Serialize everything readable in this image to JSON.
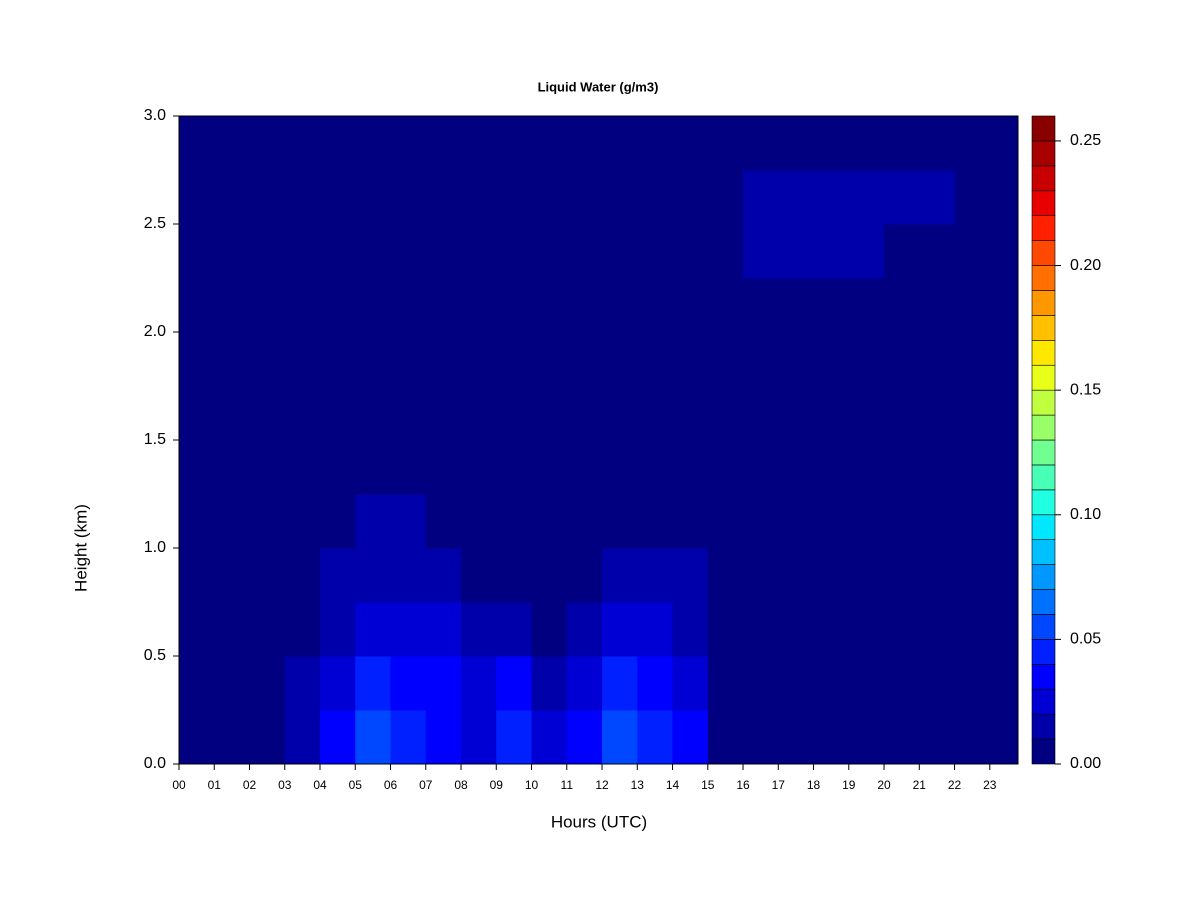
{
  "chart_data": {
    "type": "heatmap",
    "title": "Liquid Water (g/m3)",
    "x_label": "Hours (UTC)",
    "y_label": "Height (km)",
    "xbins": [
      0,
      1,
      2,
      3,
      4,
      5,
      6,
      7,
      8,
      9,
      10,
      11,
      12,
      13,
      14,
      15,
      16,
      17,
      18,
      19,
      20,
      21,
      22,
      23,
      23.8
    ],
    "ybins": [
      0,
      0.25,
      0.5,
      0.75,
      1,
      1.25,
      1.5,
      1.75,
      2,
      2.25,
      2.5,
      2.75,
      3
    ],
    "z": [
      [
        0.002,
        0.005,
        0.002,
        0.015,
        0.03,
        0.05,
        0.04,
        0.035,
        0.025,
        0.04,
        0.02,
        0.035,
        0.05,
        0.045,
        0.03,
        0.005,
        0.002,
        0.002,
        0.002,
        0.002,
        0.002,
        0.002,
        0.002,
        0.002
      ],
      [
        0.002,
        0.002,
        0.002,
        0.012,
        0.025,
        0.04,
        0.03,
        0.03,
        0.02,
        0.03,
        0.01,
        0.025,
        0.04,
        0.035,
        0.025,
        0.002,
        0.002,
        0.002,
        0.002,
        0.002,
        0.002,
        0.002,
        0.002,
        0.002
      ],
      [
        0.002,
        0.002,
        0.002,
        0.008,
        0.015,
        0.025,
        0.02,
        0.02,
        0.01,
        0.015,
        0.005,
        0.015,
        0.02,
        0.02,
        0.015,
        0.002,
        0.002,
        0.002,
        0.002,
        0.002,
        0.002,
        0.002,
        0.002,
        0.002
      ],
      [
        0.002,
        0.002,
        0.002,
        0.005,
        0.01,
        0.015,
        0.015,
        0.01,
        0.005,
        0.008,
        0.002,
        0.008,
        0.01,
        0.012,
        0.01,
        0.002,
        0.002,
        0.002,
        0.002,
        0.002,
        0.002,
        0.002,
        0.002,
        0.002
      ],
      [
        0.002,
        0.002,
        0.002,
        0.002,
        0.005,
        0.01,
        0.01,
        0.005,
        0.002,
        0.002,
        0.002,
        0.003,
        0.005,
        0.006,
        0.005,
        0.002,
        0.002,
        0.002,
        0.002,
        0.002,
        0.002,
        0.002,
        0.002,
        0.002
      ],
      [
        0.002,
        0.002,
        0.002,
        0.002,
        0.002,
        0.005,
        0.008,
        0.002,
        0.002,
        0.002,
        0.002,
        0.002,
        0.002,
        0.002,
        0.002,
        0.002,
        0.002,
        0.002,
        0.002,
        0.002,
        0.002,
        0.002,
        0.002,
        0.002
      ],
      [
        0.002,
        0.002,
        0.002,
        0.002,
        0.002,
        0.002,
        0.006,
        0.002,
        0.002,
        0.002,
        0.002,
        0.002,
        0.002,
        0.002,
        0.002,
        0.002,
        0.002,
        0.002,
        0.002,
        0.002,
        0.002,
        0.002,
        0.002,
        0.002
      ],
      [
        0.002,
        0.002,
        0.002,
        0.002,
        0.002,
        0.002,
        0.005,
        0.002,
        0.002,
        0.002,
        0.002,
        0.002,
        0.002,
        0.002,
        0.002,
        0.002,
        0.002,
        0.002,
        0.002,
        0.002,
        0.002,
        0.002,
        0.002,
        0.002
      ],
      [
        0.002,
        0.002,
        0.002,
        0.002,
        0.002,
        0.002,
        0.005,
        0.002,
        0.002,
        0.002,
        0.002,
        0.002,
        0.002,
        0.002,
        0.002,
        0.002,
        0.002,
        0.002,
        0.002,
        0.002,
        0.002,
        0.002,
        0.002,
        0.002
      ],
      [
        0.002,
        0.002,
        0.002,
        0.002,
        0.002,
        0.002,
        0.005,
        0.002,
        0.002,
        0.002,
        0.002,
        0.002,
        0.002,
        0.002,
        0.002,
        0.002,
        0.012,
        0.012,
        0.012,
        0.012,
        0.008,
        0.002,
        0.002,
        0.002
      ],
      [
        0.004,
        0.002,
        0.002,
        0.002,
        0.002,
        0.005,
        0.005,
        0.002,
        0.002,
        0.002,
        0.002,
        0.002,
        0.002,
        0.002,
        0.002,
        0.006,
        0.012,
        0.012,
        0.012,
        0.012,
        0.012,
        0.01,
        0.008,
        0.002
      ],
      [
        0.002,
        0.002,
        0.002,
        0.002,
        0.002,
        0.002,
        0.005,
        0.002,
        0.002,
        0.002,
        0.002,
        0.002,
        0.002,
        0.002,
        0.002,
        0.002,
        0.002,
        0.002,
        0.002,
        0.002,
        0.002,
        0.002,
        0.002,
        0.002
      ]
    ],
    "xlim": [
      0,
      23.8
    ],
    "ylim": [
      0,
      3
    ],
    "xticks": [
      {
        "value": 0,
        "label": "00"
      },
      {
        "value": 1,
        "label": "01"
      },
      {
        "value": 2,
        "label": "02"
      },
      {
        "value": 3,
        "label": "03"
      },
      {
        "value": 4,
        "label": "04"
      },
      {
        "value": 5,
        "label": "05"
      },
      {
        "value": 6,
        "label": "06"
      },
      {
        "value": 7,
        "label": "07"
      },
      {
        "value": 8,
        "label": "08"
      },
      {
        "value": 9,
        "label": "09"
      },
      10,
      11,
      12,
      13,
      14,
      15,
      16,
      17,
      18,
      19,
      20,
      21,
      22,
      23
    ],
    "yticks": [
      {
        "value": 0,
        "label": "0.0"
      },
      0.5,
      {
        "value": 1,
        "label": "1.0"
      },
      1.5,
      {
        "value": 2,
        "label": "2.0"
      },
      2.5,
      {
        "value": 3,
        "label": "3.0"
      }
    ],
    "colorbar": {
      "lim": [
        0,
        0.26
      ],
      "step": 0.01,
      "ticks": [
        {
          "value": 0,
          "label": "0.00"
        },
        {
          "value": 0.05,
          "label": "0.05"
        },
        {
          "value": 0.1,
          "label": "0.10"
        },
        {
          "value": 0.15,
          "label": "0.15"
        },
        {
          "value": 0.2,
          "label": "0.20"
        },
        {
          "value": 0.25,
          "label": "0.25"
        }
      ],
      "colors": [
        "#000080",
        "#0000AA",
        "#0000D4",
        "#0000FF",
        "#0020FF",
        "#0048FF",
        "#0070FF",
        "#0098FF",
        "#00C0FF",
        "#00E8FF",
        "#20FFE0",
        "#48FFB8",
        "#70FF90",
        "#98FF68",
        "#C0FF40",
        "#E8FF18",
        "#FFE800",
        "#FFC000",
        "#FF9800",
        "#FF7000",
        "#FF4800",
        "#FF2000",
        "#E80000",
        "#C80000",
        "#A80000",
        "#880000"
      ]
    }
  }
}
